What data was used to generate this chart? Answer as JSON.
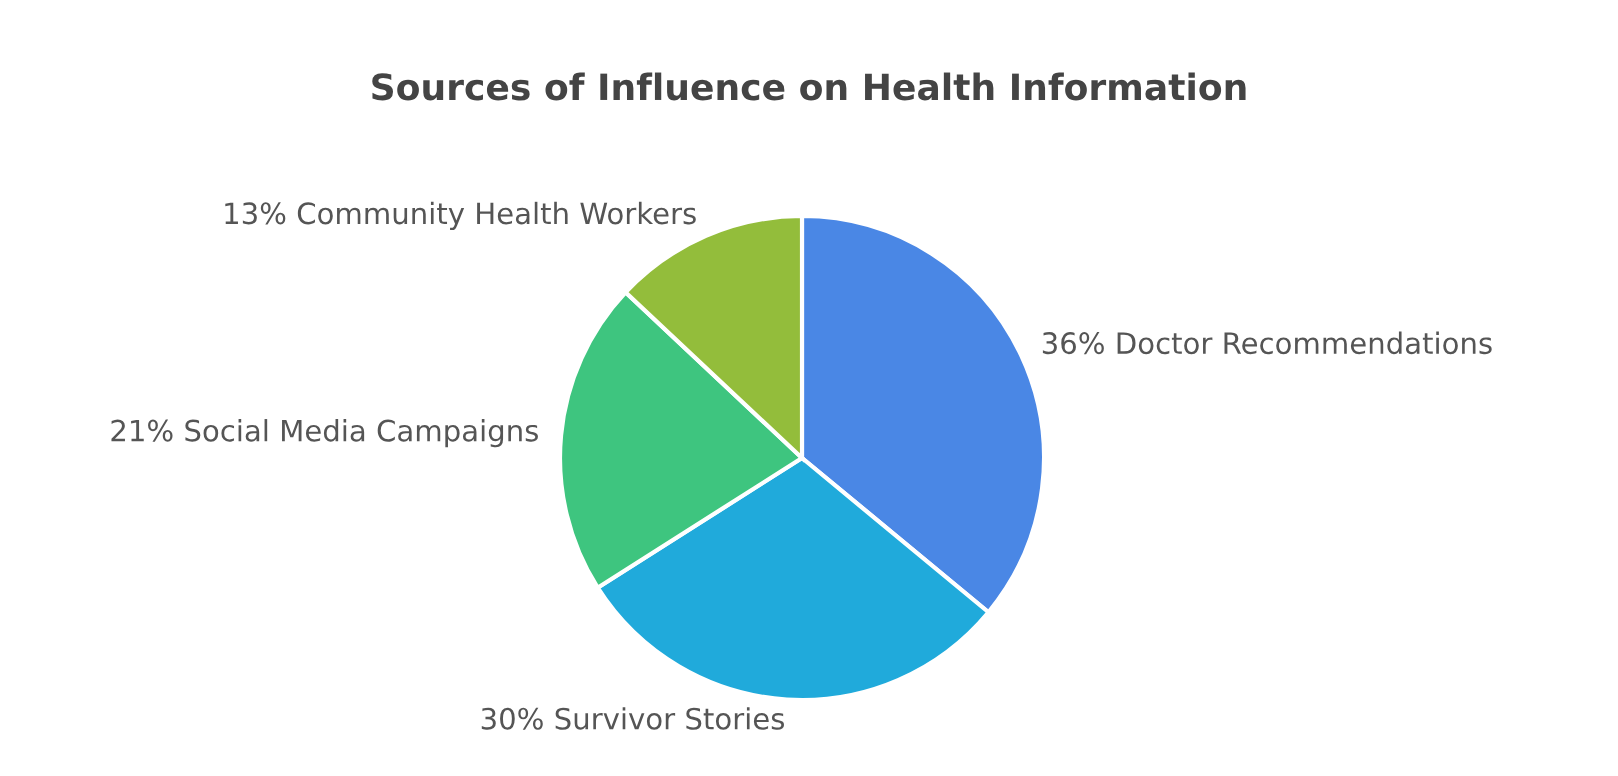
{
  "chart_data": {
    "type": "pie",
    "title": "Sources of Influence on Health Information",
    "categories": [
      "Doctor Recommendations",
      "Survivor Stories",
      "Social Media Campaigns",
      "Community Health Workers"
    ],
    "values": [
      36,
      30,
      21,
      13
    ],
    "value_labels": [
      "36%",
      "30%",
      "21%",
      "13%"
    ],
    "colors": [
      "#4a87e5",
      "#20aadb",
      "#3ec57f",
      "#93bd3b"
    ],
    "legend": false
  }
}
